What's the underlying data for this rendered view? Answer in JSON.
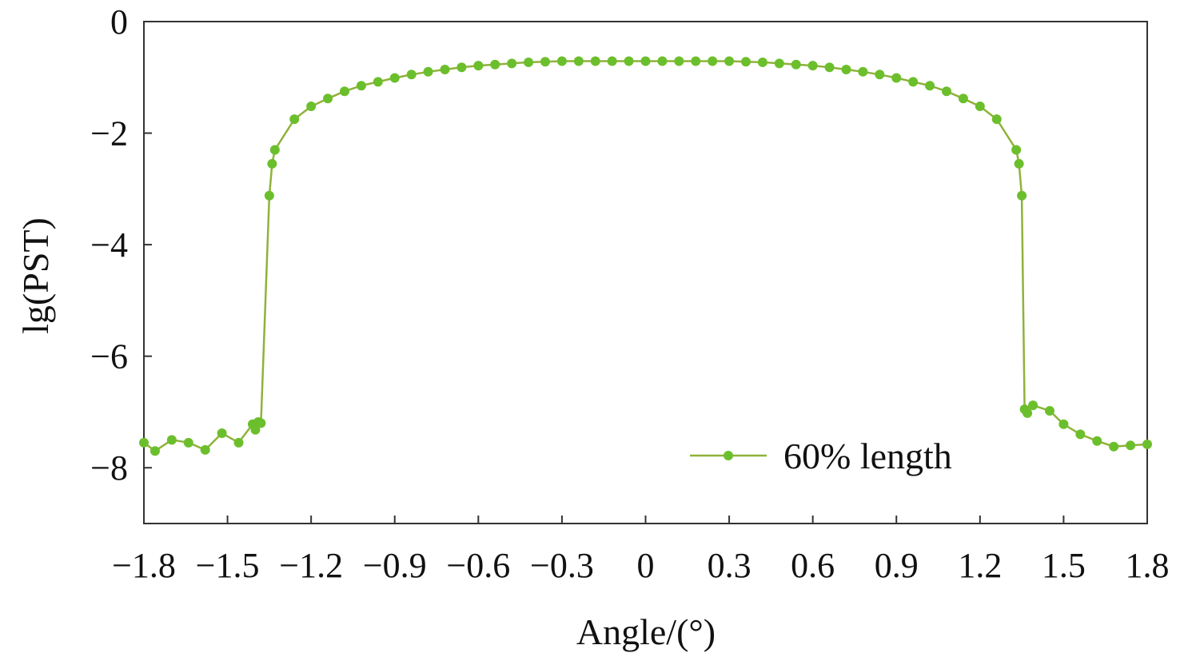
{
  "chart_data": {
    "type": "line",
    "title": "",
    "xlabel": "Angle/(°)",
    "ylabel": "lg(PST)",
    "xlim": [
      -1.8,
      1.8
    ],
    "ylim": [
      -9,
      0
    ],
    "xticks": [
      -1.8,
      -1.5,
      -1.2,
      -0.9,
      -0.6,
      -0.3,
      0,
      0.3,
      0.6,
      0.9,
      1.2,
      1.5,
      1.8
    ],
    "xtick_labels": [
      "−1.8",
      "−1.5",
      "−1.2",
      "−0.9",
      "−0.6",
      "−0.3",
      "0",
      "0.3",
      "0.6",
      "0.9",
      "1.2",
      "1.5",
      "1.8"
    ],
    "yticks": [
      0,
      -2,
      -4,
      -6,
      -8
    ],
    "ytick_labels": [
      "0",
      "−2",
      "−4",
      "−6",
      "−8"
    ],
    "grid": false,
    "legend_position": "bottom-right",
    "colors": {
      "line": "#8fb23a",
      "marker": "#6cbf2c",
      "axis": "#333333"
    },
    "series": [
      {
        "name": "60% length",
        "points": [
          [
            -1.8,
            -7.55
          ],
          [
            -1.76,
            -7.7
          ],
          [
            -1.7,
            -7.5
          ],
          [
            -1.64,
            -7.55
          ],
          [
            -1.58,
            -7.68
          ],
          [
            -1.52,
            -7.38
          ],
          [
            -1.46,
            -7.55
          ],
          [
            -1.41,
            -7.22
          ],
          [
            -1.4,
            -7.32
          ],
          [
            -1.39,
            -7.18
          ],
          [
            -1.38,
            -7.2
          ],
          [
            -1.35,
            -3.12
          ],
          [
            -1.34,
            -2.55
          ],
          [
            -1.33,
            -2.3
          ],
          [
            -1.26,
            -1.75
          ],
          [
            -1.2,
            -1.52
          ],
          [
            -1.14,
            -1.38
          ],
          [
            -1.08,
            -1.25
          ],
          [
            -1.02,
            -1.15
          ],
          [
            -0.96,
            -1.08
          ],
          [
            -0.9,
            -1.01
          ],
          [
            -0.84,
            -0.95
          ],
          [
            -0.78,
            -0.9
          ],
          [
            -0.72,
            -0.86
          ],
          [
            -0.66,
            -0.82
          ],
          [
            -0.6,
            -0.79
          ],
          [
            -0.54,
            -0.77
          ],
          [
            -0.48,
            -0.75
          ],
          [
            -0.42,
            -0.73
          ],
          [
            -0.36,
            -0.72
          ],
          [
            -0.3,
            -0.71
          ],
          [
            -0.24,
            -0.71
          ],
          [
            -0.18,
            -0.71
          ],
          [
            -0.12,
            -0.71
          ],
          [
            -0.06,
            -0.71
          ],
          [
            0.0,
            -0.71
          ],
          [
            0.06,
            -0.71
          ],
          [
            0.12,
            -0.71
          ],
          [
            0.18,
            -0.71
          ],
          [
            0.24,
            -0.71
          ],
          [
            0.3,
            -0.71
          ],
          [
            0.36,
            -0.72
          ],
          [
            0.42,
            -0.73
          ],
          [
            0.48,
            -0.75
          ],
          [
            0.54,
            -0.77
          ],
          [
            0.6,
            -0.79
          ],
          [
            0.66,
            -0.82
          ],
          [
            0.72,
            -0.86
          ],
          [
            0.78,
            -0.9
          ],
          [
            0.84,
            -0.95
          ],
          [
            0.9,
            -1.01
          ],
          [
            0.96,
            -1.08
          ],
          [
            1.02,
            -1.15
          ],
          [
            1.08,
            -1.25
          ],
          [
            1.14,
            -1.38
          ],
          [
            1.2,
            -1.52
          ],
          [
            1.26,
            -1.75
          ],
          [
            1.33,
            -2.3
          ],
          [
            1.34,
            -2.55
          ],
          [
            1.35,
            -3.12
          ],
          [
            1.36,
            -6.95
          ],
          [
            1.37,
            -7.02
          ],
          [
            1.39,
            -6.88
          ],
          [
            1.45,
            -6.98
          ],
          [
            1.5,
            -7.22
          ],
          [
            1.56,
            -7.4
          ],
          [
            1.62,
            -7.52
          ],
          [
            1.68,
            -7.62
          ],
          [
            1.74,
            -7.6
          ],
          [
            1.8,
            -7.58
          ]
        ]
      }
    ]
  }
}
